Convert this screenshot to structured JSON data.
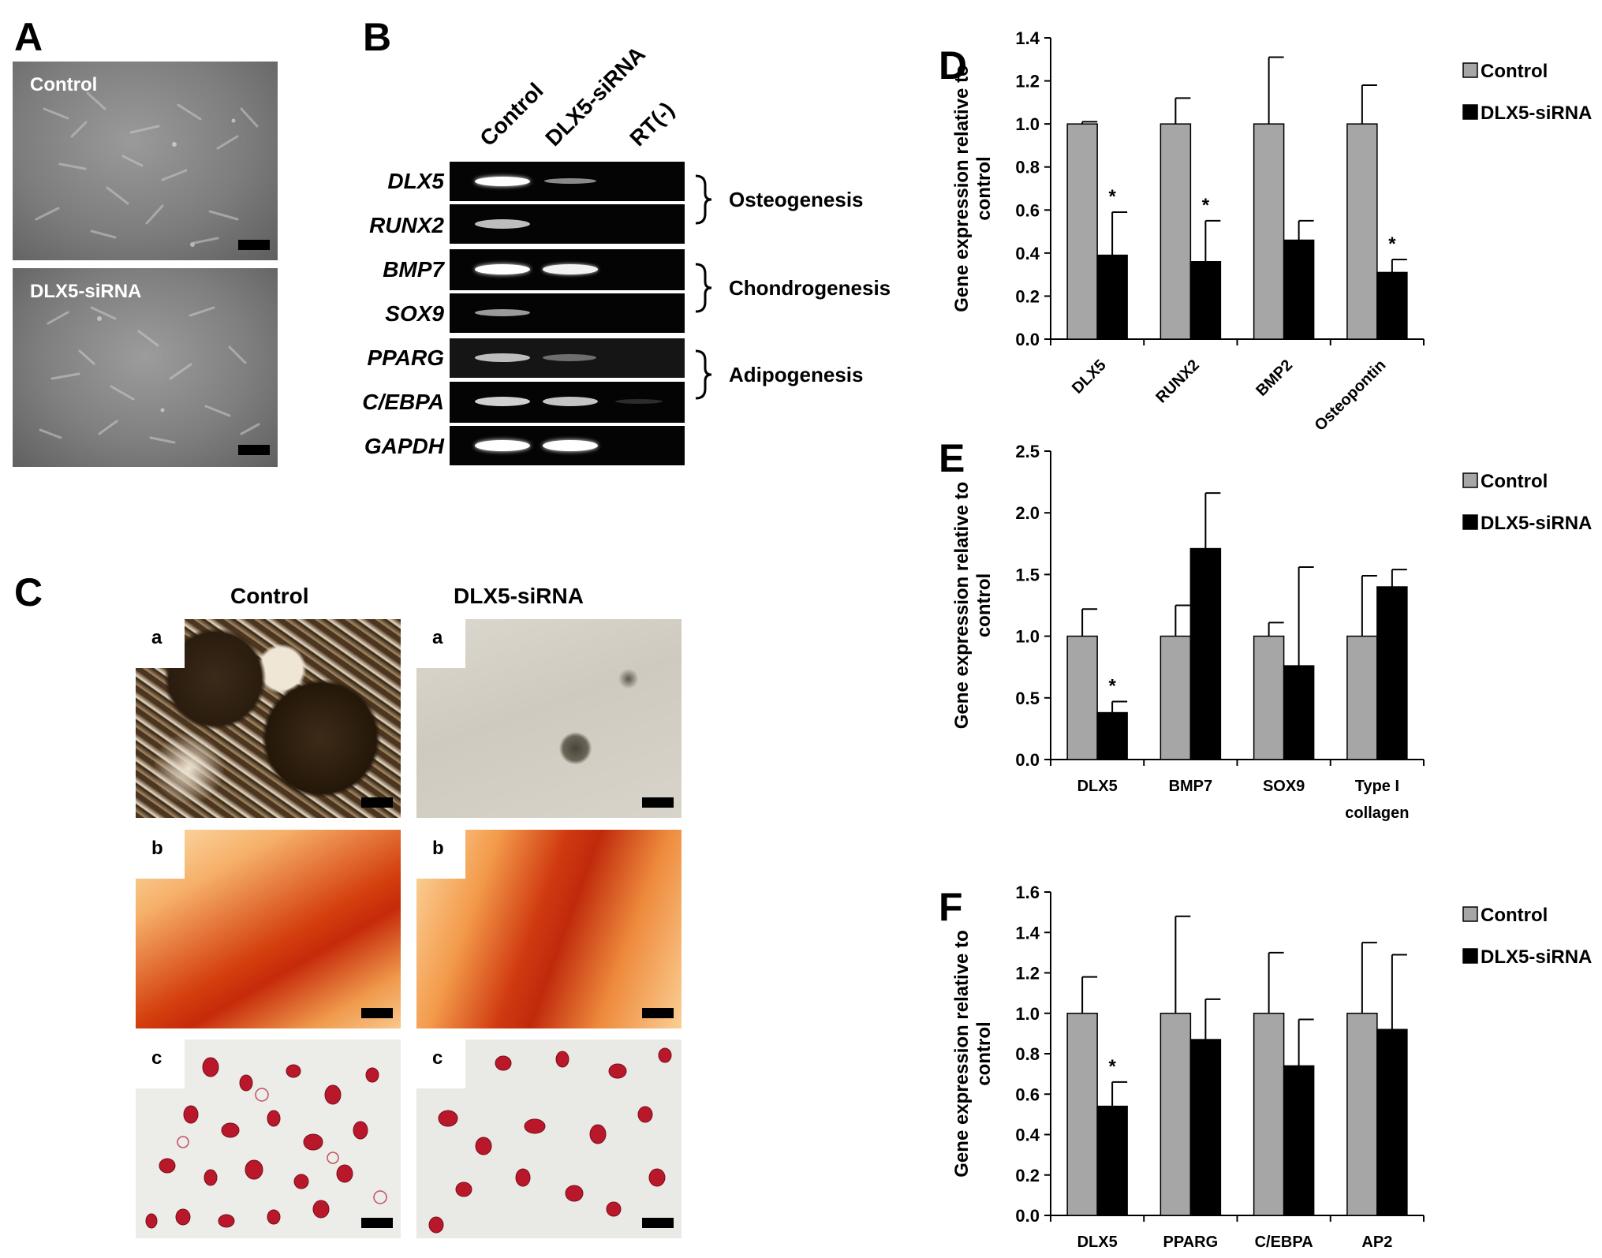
{
  "panels": {
    "A": {
      "letter": "A",
      "top_label": "Control",
      "bottom_label": "DLX5-siRNA"
    },
    "B": {
      "letter": "B",
      "lanes": [
        "Control",
        "DLX5-siRNA",
        "RT(-)"
      ],
      "genes": [
        "DLX5",
        "RUNX2",
        "BMP7",
        "SOX9",
        "PPARG",
        "C/EBPA",
        "GAPDH"
      ],
      "groups": [
        "Osteogenesis",
        "Chondrogenesis",
        "Adipogenesis"
      ]
    },
    "C": {
      "letter": "C",
      "col_left": "Control",
      "col_right": "DLX5-siRNA",
      "row_labels": [
        "a",
        "b",
        "c"
      ]
    }
  },
  "colors": {
    "control": "#a6a6a6",
    "dlx5_sirna": "#000000",
    "stain_b": "#c81e0a",
    "stain_c": "#b8182a"
  },
  "chart_data": [
    {
      "panel": "D",
      "type": "bar",
      "categories": [
        "DLX5",
        "RUNX2",
        "BMP2",
        "Osteopontin"
      ],
      "series": [
        {
          "name": "Control",
          "values": [
            1.0,
            1.0,
            1.0,
            1.0
          ],
          "errors": [
            0.01,
            0.12,
            0.31,
            0.18
          ]
        },
        {
          "name": "DLX5-siRNA",
          "values": [
            0.39,
            0.36,
            0.46,
            0.31
          ],
          "errors": [
            0.2,
            0.19,
            0.09,
            0.06
          ]
        }
      ],
      "significance": [
        true,
        true,
        false,
        true
      ],
      "sig_marker": "*",
      "ylabel": "Gene expression relative to control",
      "ylim": [
        0,
        1.4
      ],
      "yticks": [
        "0.0",
        "0.2",
        "0.4",
        "0.6",
        "0.8",
        "1.0",
        "1.2",
        "1.4"
      ],
      "legend_position": "top-right"
    },
    {
      "panel": "E",
      "type": "bar",
      "categories": [
        "DLX5",
        "BMP7",
        "SOX9",
        "Type I collagen"
      ],
      "series": [
        {
          "name": "Control",
          "values": [
            1.0,
            1.0,
            1.0,
            1.0
          ],
          "errors": [
            0.22,
            0.25,
            0.11,
            0.49
          ]
        },
        {
          "name": "DLX5-siRNA",
          "values": [
            0.38,
            1.71,
            0.76,
            1.4
          ],
          "errors": [
            0.09,
            0.45,
            0.8,
            0.14
          ]
        }
      ],
      "significance": [
        true,
        false,
        false,
        false
      ],
      "sig_marker": "*",
      "ylabel": "Gene expression relative to control",
      "ylim": [
        0,
        2.5
      ],
      "yticks": [
        "0.0",
        "0.5",
        "1.0",
        "1.5",
        "2.0",
        "2.5"
      ],
      "legend_position": "top-right"
    },
    {
      "panel": "F",
      "type": "bar",
      "categories": [
        "DLX5",
        "PPARG",
        "C/EBPA",
        "AP2"
      ],
      "series": [
        {
          "name": "Control",
          "values": [
            1.0,
            1.0,
            1.0,
            1.0
          ],
          "errors": [
            0.18,
            0.48,
            0.3,
            0.35
          ]
        },
        {
          "name": "DLX5-siRNA",
          "values": [
            0.54,
            0.87,
            0.74,
            0.92
          ],
          "errors": [
            0.12,
            0.2,
            0.23,
            0.37
          ]
        }
      ],
      "significance": [
        true,
        false,
        false,
        false
      ],
      "sig_marker": "*",
      "ylabel": "Gene expression relative to control",
      "ylim": [
        0,
        1.6
      ],
      "yticks": [
        "0.0",
        "0.2",
        "0.4",
        "0.6",
        "0.8",
        "1.0",
        "1.2",
        "1.4",
        "1.6"
      ],
      "legend_position": "top-right"
    }
  ]
}
